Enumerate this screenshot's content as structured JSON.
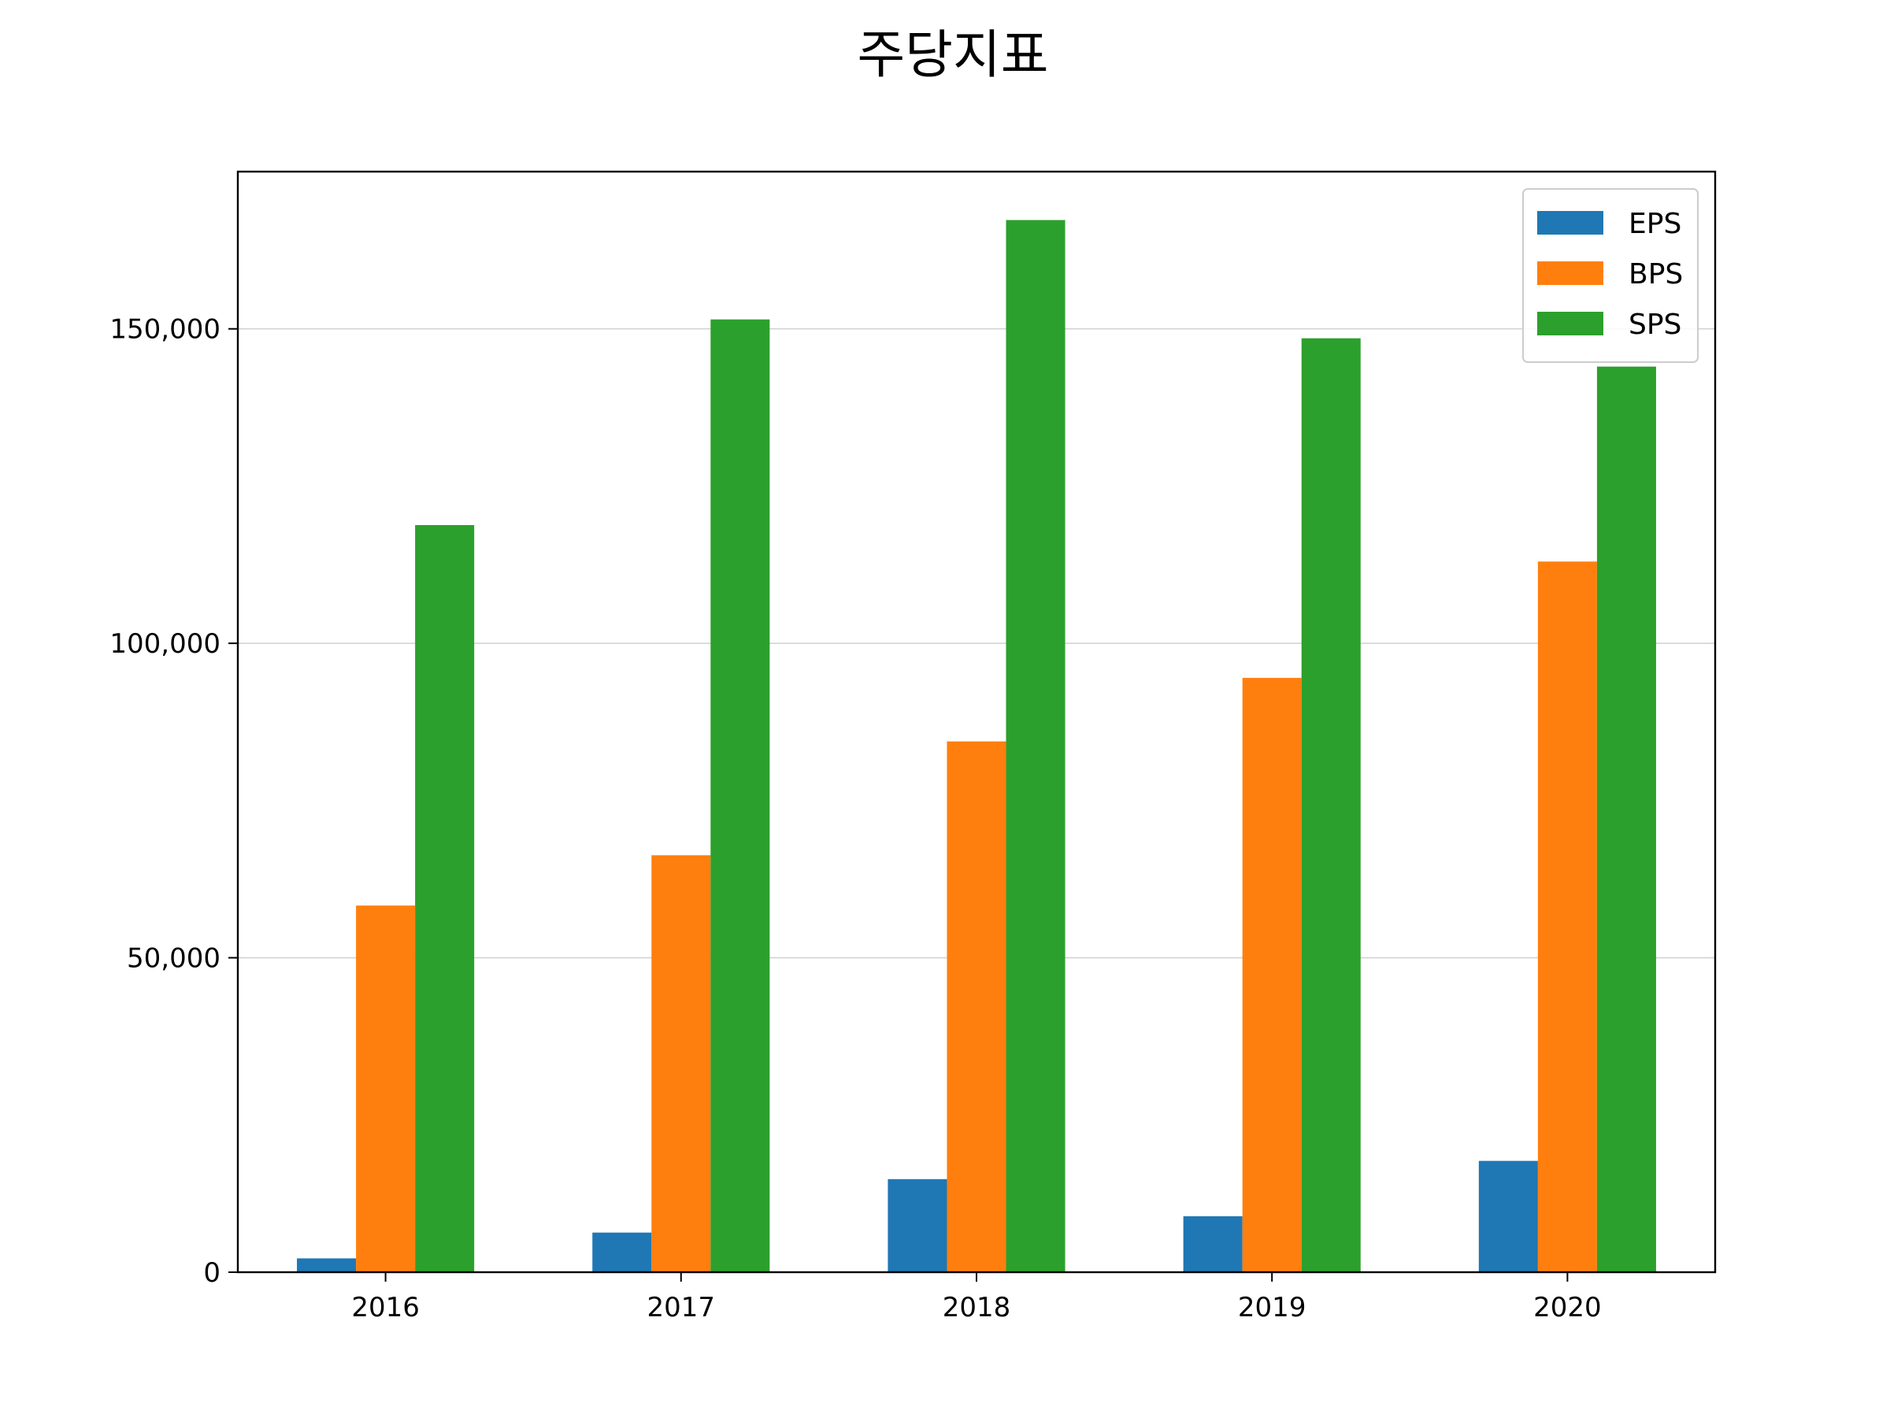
{
  "chart_data": {
    "type": "bar",
    "title": "주당지표",
    "xlabel": "",
    "ylabel": "",
    "categories": [
      "2016",
      "2017",
      "2018",
      "2019",
      "2020"
    ],
    "series": [
      {
        "name": "EPS",
        "color": "#1f77b4",
        "values": [
          2200,
          6300,
          14800,
          8900,
          17700
        ]
      },
      {
        "name": "BPS",
        "color": "#ff7f0e",
        "values": [
          58300,
          66300,
          84400,
          94500,
          113000
        ]
      },
      {
        "name": "SPS",
        "color": "#2ca02c",
        "values": [
          118800,
          151500,
          167300,
          148500,
          144000
        ]
      }
    ],
    "ylim": [
      0,
      175000
    ],
    "yticks": [
      0,
      50000,
      100000,
      150000
    ],
    "ytick_labels": [
      "0",
      "50,000",
      "100,000",
      "150,000"
    ],
    "grid": {
      "y": true,
      "x": false,
      "color": "#d3d3d3"
    },
    "legend": {
      "position": "top-right",
      "entries": [
        "EPS",
        "BPS",
        "SPS"
      ]
    }
  }
}
